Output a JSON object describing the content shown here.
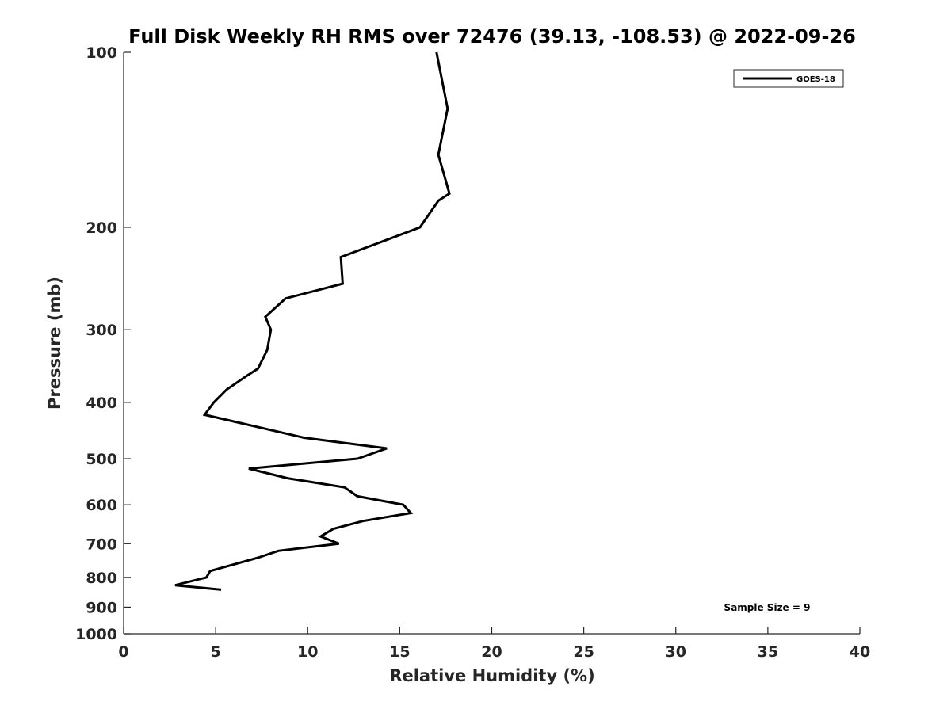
{
  "chart_data": {
    "type": "line",
    "title": "Full Disk Weekly RH RMS over 72476 (39.13, -108.53) @ 2022-09-26",
    "xlabel": "Relative Humidity (%)",
    "ylabel": "Pressure (mb)",
    "xlim": [
      0,
      40
    ],
    "ylim": [
      100,
      1000
    ],
    "yscale": "log",
    "y_reversed": true,
    "grid": false,
    "legend_position": "top-right",
    "x_ticks": [
      0,
      5,
      10,
      15,
      20,
      25,
      30,
      35,
      40
    ],
    "x_tick_labels": [
      "0",
      "5",
      "10",
      "15",
      "20",
      "25",
      "30",
      "35",
      "40"
    ],
    "y_ticks": [
      100,
      200,
      300,
      400,
      500,
      600,
      700,
      800,
      900,
      1000
    ],
    "y_tick_labels": [
      "100",
      "200",
      "300",
      "400",
      "500",
      "600",
      "700",
      "800",
      "900",
      "1000"
    ],
    "series": [
      {
        "name": "GOES-18",
        "color": "#000000",
        "points": [
          {
            "rh": 17.0,
            "p": 100
          },
          {
            "rh": 17.6,
            "p": 125
          },
          {
            "rh": 17.1,
            "p": 150
          },
          {
            "rh": 17.7,
            "p": 175
          },
          {
            "rh": 17.1,
            "p": 180
          },
          {
            "rh": 16.1,
            "p": 200
          },
          {
            "rh": 11.8,
            "p": 225
          },
          {
            "rh": 11.9,
            "p": 250
          },
          {
            "rh": 8.8,
            "p": 265
          },
          {
            "rh": 7.7,
            "p": 285
          },
          {
            "rh": 8.0,
            "p": 300
          },
          {
            "rh": 7.8,
            "p": 325
          },
          {
            "rh": 7.3,
            "p": 350
          },
          {
            "rh": 6.7,
            "p": 360
          },
          {
            "rh": 5.6,
            "p": 380
          },
          {
            "rh": 4.9,
            "p": 400
          },
          {
            "rh": 4.4,
            "p": 420
          },
          {
            "rh": 9.8,
            "p": 460
          },
          {
            "rh": 14.3,
            "p": 480
          },
          {
            "rh": 12.7,
            "p": 500
          },
          {
            "rh": 6.8,
            "p": 520
          },
          {
            "rh": 8.9,
            "p": 540
          },
          {
            "rh": 12.0,
            "p": 560
          },
          {
            "rh": 12.7,
            "p": 580
          },
          {
            "rh": 15.2,
            "p": 600
          },
          {
            "rh": 15.6,
            "p": 620
          },
          {
            "rh": 13.0,
            "p": 640
          },
          {
            "rh": 11.4,
            "p": 660
          },
          {
            "rh": 10.7,
            "p": 680
          },
          {
            "rh": 11.7,
            "p": 700
          },
          {
            "rh": 8.4,
            "p": 720
          },
          {
            "rh": 7.3,
            "p": 740
          },
          {
            "rh": 4.7,
            "p": 780
          },
          {
            "rh": 4.5,
            "p": 800
          },
          {
            "rh": 2.8,
            "p": 825
          },
          {
            "rh": 5.3,
            "p": 840
          }
        ]
      }
    ],
    "annotations": [
      {
        "text": "Sample Size = 9"
      }
    ]
  }
}
